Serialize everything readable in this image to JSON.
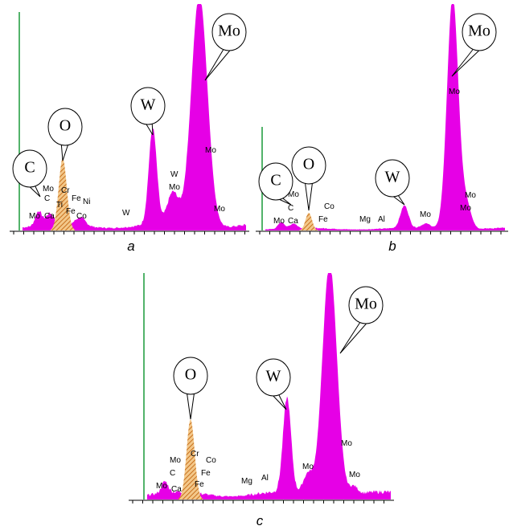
{
  "panels": [
    {
      "caption": "a",
      "callouts": [
        "C",
        "O",
        "W",
        "Mo"
      ],
      "peak_labels": [
        "Mo",
        "Ca",
        "C",
        "Mo",
        "Ti",
        "Cr",
        "Fe",
        "Ni",
        "Fe",
        "Co",
        "W",
        "W",
        "Mo",
        "Mo",
        "Mo"
      ]
    },
    {
      "caption": "b",
      "callouts": [
        "C",
        "O",
        "W",
        "Mo"
      ],
      "peak_labels": [
        "Mo",
        "Ca",
        "C",
        "Mo",
        "Fe",
        "Co",
        "Mg",
        "Al",
        "Mo",
        "Mo",
        "Mo",
        "Mo"
      ]
    },
    {
      "caption": "c",
      "callouts": [
        "O",
        "W",
        "Mo"
      ],
      "peak_labels": [
        "Mo",
        "Ca",
        "C",
        "Mo",
        "Cr",
        "Co",
        "Fe",
        "Fe",
        "Mg",
        "Al",
        "Mo",
        "Mo",
        "Mo"
      ]
    }
  ]
}
